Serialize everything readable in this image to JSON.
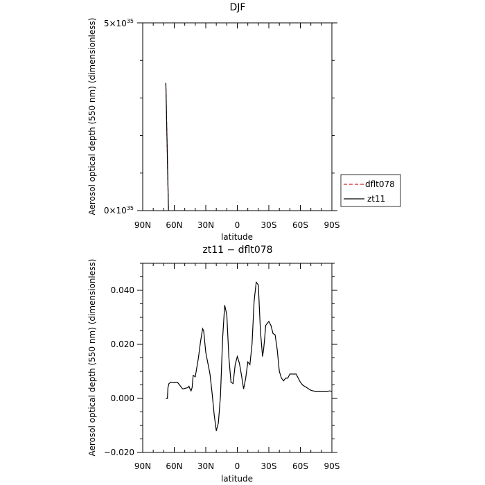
{
  "chart_data": [
    {
      "type": "line",
      "title": "DJF",
      "xlabel": "latitude",
      "ylabel": "Aerosol optical depth (550 nm) (dimensionless)",
      "x_ticks": [
        "90N",
        "60N",
        "30N",
        "0",
        "30S",
        "60S",
        "90S"
      ],
      "x_tick_values": [
        90,
        60,
        30,
        0,
        -30,
        -60,
        -90
      ],
      "xlim": [
        90,
        -90
      ],
      "y_ticks": [
        {
          "label": "0×10",
          "exp": "35",
          "value": 0
        },
        {
          "label": "5×10",
          "exp": "35",
          "value": 5e+35
        }
      ],
      "ylim": [
        0,
        5e+35
      ],
      "legend_position": "right",
      "series": [
        {
          "name": "dflt078",
          "color": "#d62020",
          "dash": "dashed",
          "x": [
            68,
            65.5
          ],
          "y": [
            3.4e+35,
            0
          ]
        },
        {
          "name": "zt11",
          "color": "#000000",
          "dash": "solid",
          "x": [
            68,
            65.5
          ],
          "y": [
            3.4e+35,
            0
          ]
        }
      ]
    },
    {
      "type": "line",
      "title": "zt11 − dflt078",
      "xlabel": "latitude",
      "ylabel": "Aerosol optical depth (550 nm) (dimensionless)",
      "x_ticks": [
        "90N",
        "60N",
        "30N",
        "0",
        "30S",
        "60S",
        "90S"
      ],
      "x_tick_values": [
        90,
        60,
        30,
        0,
        -30,
        -60,
        -90
      ],
      "xlim": [
        90,
        -90
      ],
      "y_ticks": [
        {
          "label": "−0.020",
          "value": -0.02
        },
        {
          "label": "0.000",
          "value": 0
        },
        {
          "label": "0.020",
          "value": 0.02
        },
        {
          "label": "0.040",
          "value": 0.04
        }
      ],
      "ylim": [
        -0.02,
        0.05
      ],
      "series": [
        {
          "color": "#000000",
          "dash": "solid",
          "x": [
            68,
            66.5,
            66,
            65,
            63,
            60,
            57,
            55,
            52,
            49,
            47,
            46,
            45,
            44,
            43,
            42,
            40,
            37,
            35,
            33,
            32,
            30,
            28,
            26,
            24,
            22,
            20,
            18,
            16,
            14,
            12,
            10,
            8,
            6,
            4,
            2,
            0,
            -2,
            -4,
            -6,
            -8,
            -10,
            -12,
            -14,
            -16,
            -18,
            -20,
            -22,
            -24,
            -25,
            -26,
            -27,
            -28,
            -30,
            -32,
            -34,
            -36,
            -38,
            -40,
            -42,
            -44,
            -46,
            -48,
            -50,
            -52,
            -54,
            -56,
            -58,
            -60,
            -62,
            -64,
            -66,
            -68,
            -70,
            -75,
            -80,
            -85,
            -88,
            -90
          ],
          "y": [
            0.0,
            0.0,
            0.004,
            0.0055,
            0.006,
            0.0058,
            0.006,
            0.005,
            0.0035,
            0.0038,
            0.004,
            0.0045,
            0.0035,
            0.0028,
            0.004,
            0.0085,
            0.008,
            0.015,
            0.021,
            0.0258,
            0.025,
            0.017,
            0.013,
            0.009,
            0.002,
            -0.006,
            -0.012,
            -0.009,
            0.001,
            0.022,
            0.0345,
            0.031,
            0.015,
            0.006,
            0.0055,
            0.0125,
            0.0155,
            0.013,
            0.0085,
            0.0035,
            0.0075,
            0.0135,
            0.0125,
            0.02,
            0.036,
            0.043,
            0.042,
            0.025,
            0.0155,
            0.018,
            0.022,
            0.027,
            0.0275,
            0.0285,
            0.027,
            0.024,
            0.0235,
            0.018,
            0.01,
            0.0075,
            0.0065,
            0.0075,
            0.0075,
            0.009,
            0.009,
            0.009,
            0.009,
            0.0075,
            0.006,
            0.005,
            0.0045,
            0.004,
            0.0035,
            0.003,
            0.0025,
            0.0025,
            0.0025,
            0.0028,
            0.0025
          ]
        }
      ]
    }
  ]
}
